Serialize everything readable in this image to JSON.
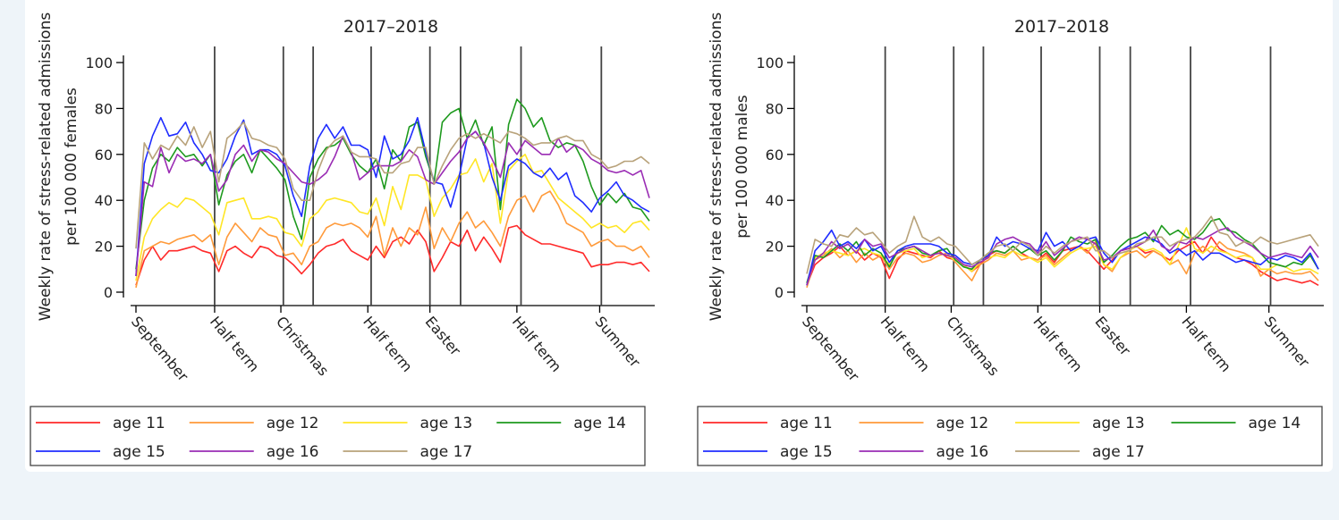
{
  "chart_data": [
    {
      "type": "line",
      "title": "2017–2018",
      "ylabel_line1": "Weekly rate of stress-related admissions",
      "ylabel_line2": "per 100 000 females",
      "ylim": [
        0,
        100
      ],
      "yticks": [
        0,
        20,
        40,
        60,
        80,
        100
      ],
      "x": [
        0,
        1,
        2,
        3,
        4,
        5,
        6,
        7,
        8,
        9,
        10,
        11,
        12,
        13,
        14,
        15,
        16,
        17,
        18,
        19,
        20,
        21,
        22,
        23,
        24,
        25,
        26,
        27,
        28,
        29,
        30,
        31,
        32,
        33,
        34,
        35,
        36,
        37,
        38,
        39,
        40,
        41,
        42,
        43,
        44,
        45,
        46,
        47,
        48,
        49,
        50,
        51,
        52,
        53,
        54,
        55,
        56,
        57,
        58,
        59,
        60,
        61,
        62
      ],
      "xlim": [
        0,
        62
      ],
      "x_tick_labels": [
        {
          "x": 0,
          "label": "September"
        },
        {
          "x": 9.5,
          "label": "Half term"
        },
        {
          "x": 17.5,
          "label": "Christmas"
        },
        {
          "x": 28,
          "label": "Half term"
        },
        {
          "x": 35.5,
          "label": "Easter"
        },
        {
          "x": 46,
          "label": "Half term"
        },
        {
          "x": 56,
          "label": "Summer"
        }
      ],
      "vlines": [
        9.5,
        17.8,
        21.4,
        28.4,
        35.5,
        39.2,
        46.5,
        56.2
      ],
      "series": [
        {
          "name": "age 11",
          "values": [
            3,
            14,
            20,
            14,
            18,
            18,
            19,
            20,
            18,
            17,
            9,
            18,
            20,
            17,
            15,
            20,
            19,
            16,
            15,
            12,
            8,
            12,
            17,
            20,
            21,
            23,
            18,
            16,
            14,
            20,
            15,
            22,
            24,
            21,
            27,
            22,
            9,
            15,
            22,
            20,
            27,
            18,
            24,
            19,
            13,
            28,
            29,
            25,
            23,
            21,
            21,
            20,
            19,
            18,
            17,
            11,
            12,
            12,
            13,
            13,
            12,
            13,
            9
          ]
        },
        {
          "name": "age 12",
          "values": [
            2,
            18,
            20,
            22,
            21,
            23,
            24,
            25,
            22,
            25,
            12,
            24,
            30,
            26,
            22,
            28,
            25,
            24,
            16,
            17,
            12,
            20,
            22,
            28,
            30,
            29,
            30,
            28,
            24,
            33,
            16,
            28,
            20,
            28,
            25,
            37,
            19,
            28,
            22,
            30,
            35,
            28,
            31,
            26,
            20,
            33,
            40,
            42,
            35,
            42,
            44,
            38,
            30,
            28,
            26,
            20,
            22,
            23,
            20,
            20,
            18,
            20,
            15
          ]
        },
        {
          "name": "age 13",
          "values": [
            5,
            24,
            32,
            36,
            39,
            37,
            41,
            40,
            37,
            34,
            25,
            39,
            40,
            41,
            32,
            32,
            33,
            32,
            26,
            25,
            20,
            32,
            35,
            40,
            41,
            40,
            39,
            35,
            34,
            41,
            29,
            46,
            36,
            51,
            51,
            49,
            33,
            41,
            45,
            51,
            52,
            58,
            48,
            56,
            30,
            53,
            57,
            60,
            52,
            53,
            47,
            41,
            38,
            35,
            32,
            28,
            30,
            28,
            29,
            26,
            30,
            31,
            27
          ]
        },
        {
          "name": "age 14",
          "values": [
            10,
            40,
            54,
            60,
            57,
            63,
            59,
            60,
            55,
            60,
            38,
            51,
            57,
            60,
            52,
            62,
            58,
            54,
            49,
            33,
            23,
            50,
            58,
            63,
            64,
            67,
            60,
            55,
            52,
            58,
            45,
            62,
            57,
            72,
            74,
            59,
            48,
            74,
            78,
            80,
            67,
            75,
            64,
            72,
            36,
            73,
            84,
            80,
            72,
            76,
            66,
            63,
            65,
            64,
            57,
            46,
            38,
            43,
            39,
            43,
            37,
            36,
            31
          ]
        },
        {
          "name": "age 15",
          "values": [
            7,
            56,
            68,
            76,
            68,
            69,
            74,
            65,
            60,
            53,
            52,
            58,
            68,
            75,
            60,
            62,
            62,
            60,
            55,
            42,
            33,
            55,
            67,
            73,
            67,
            72,
            64,
            64,
            62,
            50,
            68,
            58,
            60,
            66,
            76,
            61,
            48,
            47,
            37,
            50,
            67,
            70,
            65,
            50,
            40,
            55,
            58,
            56,
            52,
            50,
            54,
            49,
            52,
            42,
            39,
            35,
            41,
            44,
            48,
            42,
            40,
            37,
            35
          ]
        },
        {
          "name": "age 16",
          "values": [
            7,
            48,
            46,
            63,
            52,
            60,
            57,
            58,
            56,
            60,
            44,
            49,
            60,
            64,
            57,
            62,
            61,
            58,
            56,
            52,
            48,
            47,
            49,
            52,
            59,
            68,
            61,
            49,
            52,
            55,
            55,
            55,
            57,
            62,
            59,
            49,
            47,
            52,
            57,
            61,
            67,
            70,
            65,
            58,
            50,
            65,
            60,
            66,
            63,
            60,
            60,
            67,
            61,
            64,
            62,
            58,
            56,
            53,
            52,
            53,
            51,
            53,
            41
          ]
        },
        {
          "name": "age 17",
          "values": [
            19,
            65,
            58,
            64,
            62,
            68,
            64,
            72,
            63,
            70,
            48,
            67,
            70,
            74,
            67,
            66,
            64,
            63,
            58,
            45,
            40,
            40,
            53,
            62,
            66,
            68,
            61,
            59,
            59,
            58,
            52,
            52,
            56,
            57,
            63,
            63,
            47,
            55,
            62,
            67,
            69,
            67,
            69,
            67,
            65,
            70,
            69,
            67,
            64,
            65,
            65,
            67,
            68,
            66,
            66,
            60,
            58,
            54,
            55,
            57,
            57,
            59,
            56
          ]
        }
      ],
      "legend": "bottom"
    },
    {
      "type": "line",
      "title": "2017–2018",
      "ylabel_line1": "Weekly rate of stress-related admissions",
      "ylabel_line2": "per 100 000 males",
      "ylim": [
        0,
        100
      ],
      "yticks": [
        0,
        20,
        40,
        60,
        80,
        100
      ],
      "x": [
        0,
        1,
        2,
        3,
        4,
        5,
        6,
        7,
        8,
        9,
        10,
        11,
        12,
        13,
        14,
        15,
        16,
        17,
        18,
        19,
        20,
        21,
        22,
        23,
        24,
        25,
        26,
        27,
        28,
        29,
        30,
        31,
        32,
        33,
        34,
        35,
        36,
        37,
        38,
        39,
        40,
        41,
        42,
        43,
        44,
        45,
        46,
        47,
        48,
        49,
        50,
        51,
        52,
        53,
        54,
        55,
        56,
        57,
        58,
        59,
        60,
        61,
        62
      ],
      "xlim": [
        0,
        62
      ],
      "x_tick_labels": [
        {
          "x": 0,
          "label": "September"
        },
        {
          "x": 9.5,
          "label": "Half term"
        },
        {
          "x": 17.5,
          "label": "Christmas"
        },
        {
          "x": 28,
          "label": "Half term"
        },
        {
          "x": 35.5,
          "label": "Easter"
        },
        {
          "x": 46,
          "label": "Half term"
        },
        {
          "x": 56,
          "label": "Summer"
        }
      ],
      "vlines": [
        9.5,
        17.8,
        21.4,
        28.4,
        35.5,
        39.2,
        46.5,
        56.2
      ],
      "series": [
        {
          "name": "age 11",
          "values": [
            3,
            12,
            15,
            17,
            20,
            16,
            18,
            14,
            17,
            15,
            6,
            14,
            18,
            17,
            16,
            15,
            18,
            15,
            14,
            12,
            9,
            12,
            16,
            18,
            17,
            20,
            17,
            15,
            14,
            17,
            13,
            18,
            19,
            20,
            18,
            14,
            10,
            14,
            18,
            19,
            20,
            17,
            18,
            16,
            14,
            18,
            20,
            22,
            17,
            24,
            19,
            17,
            15,
            14,
            12,
            9,
            7,
            5,
            6,
            5,
            4,
            5,
            3
          ]
        },
        {
          "name": "age 12",
          "values": [
            2,
            14,
            16,
            19,
            15,
            18,
            13,
            17,
            14,
            16,
            10,
            15,
            17,
            16,
            13,
            14,
            16,
            17,
            13,
            9,
            5,
            12,
            14,
            17,
            16,
            18,
            14,
            15,
            14,
            16,
            12,
            15,
            18,
            20,
            17,
            22,
            12,
            9,
            15,
            17,
            18,
            15,
            18,
            16,
            12,
            14,
            8,
            17,
            20,
            17,
            22,
            19,
            18,
            17,
            15,
            7,
            10,
            8,
            9,
            8,
            8,
            9,
            5
          ]
        },
        {
          "name": "age 13",
          "values": [
            4,
            15,
            17,
            18,
            17,
            16,
            18,
            19,
            17,
            16,
            12,
            17,
            18,
            19,
            15,
            16,
            17,
            16,
            14,
            12,
            9,
            13,
            15,
            16,
            15,
            18,
            16,
            15,
            13,
            15,
            11,
            14,
            17,
            19,
            19,
            20,
            12,
            10,
            15,
            18,
            20,
            18,
            19,
            17,
            12,
            20,
            28,
            19,
            17,
            20,
            18,
            17,
            15,
            16,
            15,
            10,
            10,
            12,
            11,
            9,
            10,
            10,
            8
          ]
        },
        {
          "name": "age 14",
          "values": [
            4,
            16,
            15,
            18,
            21,
            18,
            22,
            16,
            19,
            17,
            11,
            18,
            19,
            20,
            17,
            16,
            18,
            19,
            14,
            11,
            10,
            14,
            17,
            18,
            17,
            20,
            17,
            19,
            16,
            18,
            14,
            18,
            24,
            22,
            21,
            23,
            13,
            16,
            20,
            23,
            24,
            26,
            22,
            29,
            25,
            27,
            24,
            23,
            26,
            31,
            32,
            27,
            26,
            23,
            21,
            17,
            13,
            12,
            11,
            13,
            12,
            16,
            10
          ]
        },
        {
          "name": "age 15",
          "values": [
            3,
            18,
            22,
            27,
            20,
            22,
            19,
            23,
            18,
            20,
            13,
            18,
            20,
            21,
            21,
            21,
            20,
            17,
            16,
            13,
            12,
            14,
            16,
            24,
            20,
            22,
            21,
            19,
            18,
            26,
            20,
            22,
            18,
            20,
            23,
            24,
            17,
            13,
            18,
            20,
            22,
            24,
            23,
            21,
            17,
            19,
            16,
            18,
            14,
            17,
            17,
            15,
            13,
            14,
            13,
            12,
            15,
            14,
            16,
            15,
            13,
            17,
            10
          ]
        },
        {
          "name": "age 16",
          "values": [
            3,
            14,
            17,
            22,
            19,
            21,
            17,
            23,
            20,
            21,
            15,
            17,
            19,
            20,
            18,
            16,
            17,
            16,
            15,
            12,
            11,
            13,
            15,
            21,
            23,
            24,
            22,
            21,
            17,
            22,
            16,
            19,
            22,
            24,
            23,
            21,
            14,
            15,
            18,
            19,
            20,
            22,
            27,
            20,
            18,
            22,
            21,
            24,
            23,
            25,
            27,
            28,
            24,
            22,
            20,
            17,
            15,
            16,
            17,
            16,
            15,
            20,
            15
          ]
        },
        {
          "name": "age 17",
          "values": [
            8,
            23,
            21,
            20,
            25,
            24,
            28,
            25,
            26,
            22,
            17,
            20,
            22,
            33,
            24,
            22,
            24,
            21,
            20,
            16,
            12,
            14,
            17,
            20,
            21,
            18,
            22,
            20,
            16,
            20,
            17,
            20,
            22,
            23,
            24,
            18,
            18,
            15,
            17,
            18,
            21,
            22,
            24,
            24,
            20,
            22,
            23,
            24,
            28,
            33,
            26,
            25,
            20,
            22,
            21,
            24,
            22,
            21,
            22,
            23,
            24,
            25,
            20
          ]
        }
      ],
      "legend": "bottom"
    }
  ],
  "colors": {
    "age 11": "#ff2a2a",
    "age 12": "#ff9a3a",
    "age 13": "#ffe625",
    "age 14": "#1e9a1e",
    "age 15": "#1f2cff",
    "age 16": "#9a2cb4",
    "age 17": "#b8a27a"
  }
}
